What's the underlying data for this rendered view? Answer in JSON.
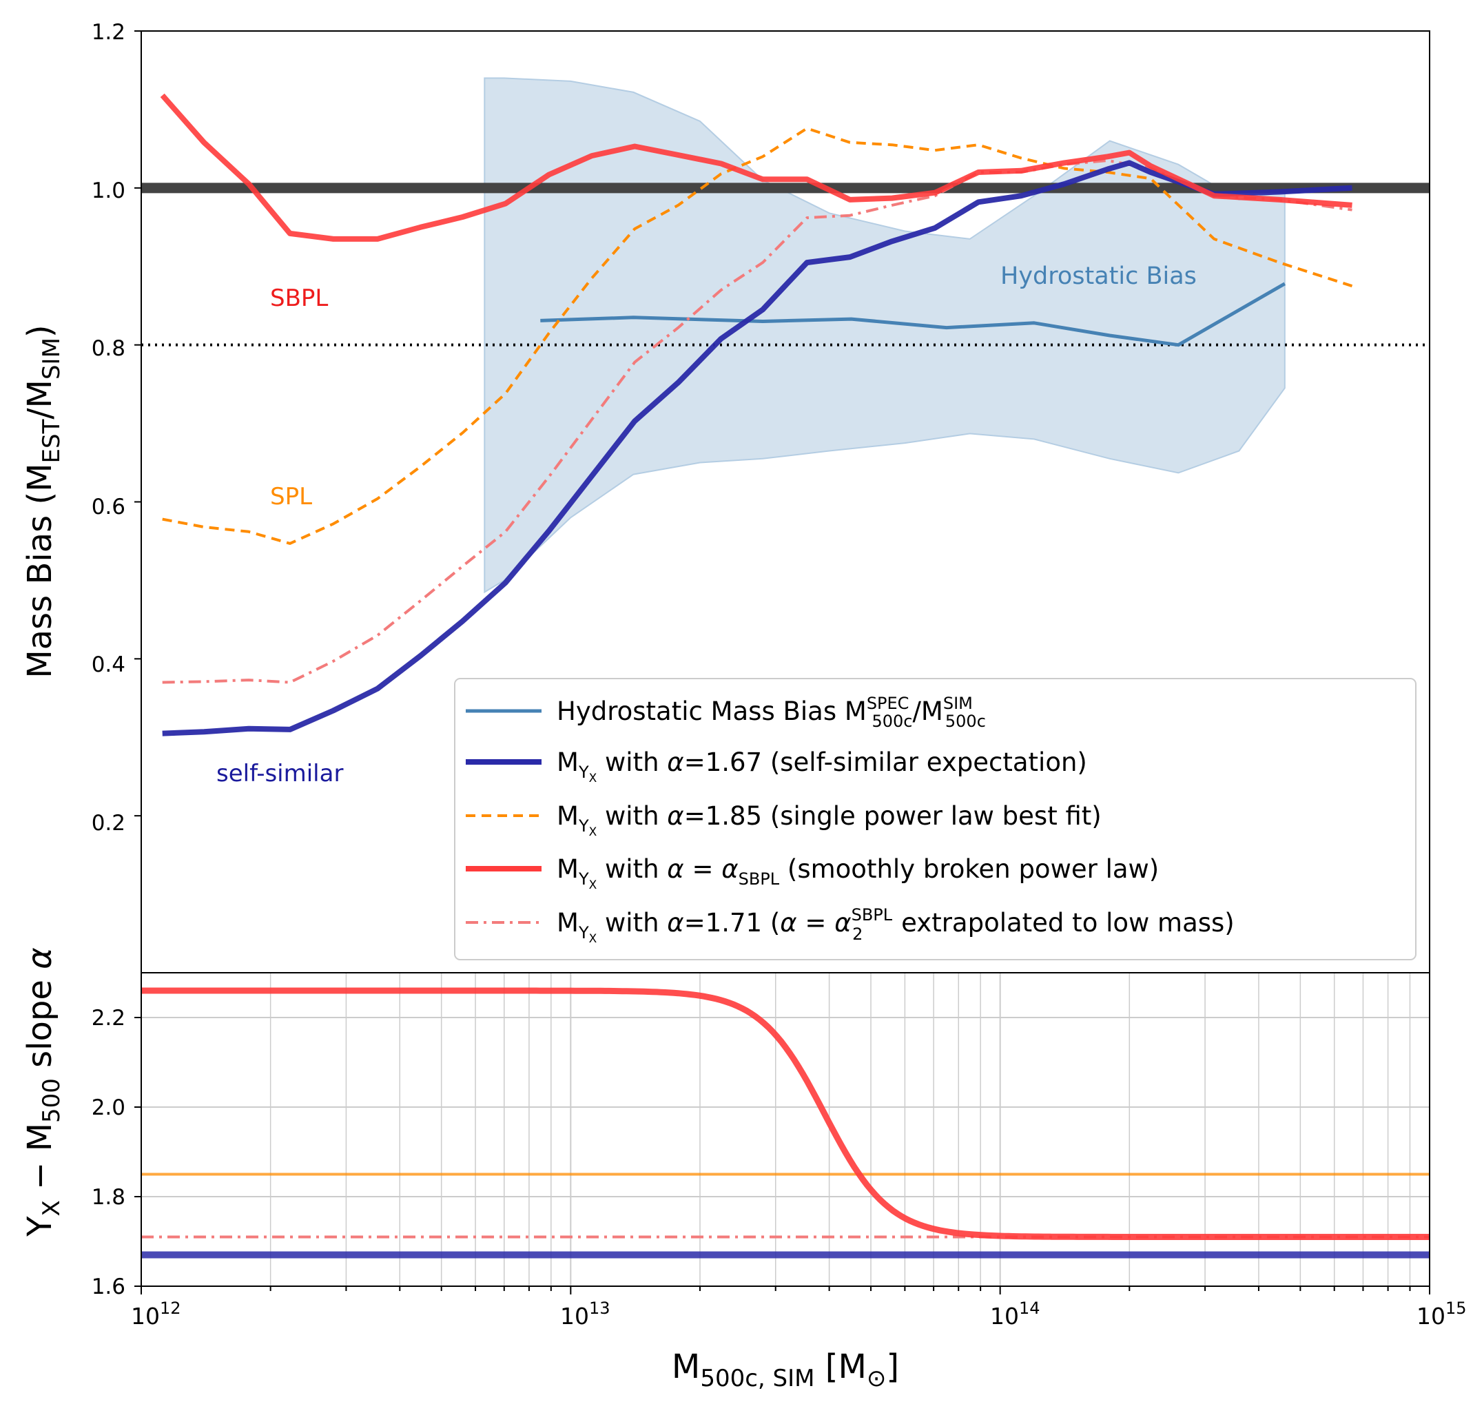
{
  "colors": {
    "self_similar": "#2a2aa8",
    "spl": "#ff8c00",
    "sbpl": "#ff3b3b",
    "sbpl_extrap": "#f37b7b",
    "hydro": "#4682b4",
    "hydro_band": "#c9dbea",
    "ref_line": "#444444",
    "grid": "#cccccc"
  },
  "chart_data": [
    {
      "type": "line",
      "xscale": "log",
      "xlim": [
        1000000000000.0,
        1000000000000000.0
      ],
      "ylim": [
        0,
        1.2
      ],
      "ylabel": "Mass Bias  (M_EST/M_SIM)",
      "yticks": [
        "0.2",
        "0.4",
        "0.6",
        "0.8",
        "1.0",
        "1.2"
      ],
      "reference_lines": [
        {
          "y": 1.0,
          "style": "solid",
          "name": "unity"
        },
        {
          "y": 0.8,
          "style": "dotted",
          "name": "hydrostatic-0.8"
        }
      ],
      "annotations": {
        "sbpl": "SBPL",
        "spl": "SPL",
        "self_similar": "self-similar",
        "hydro": "Hydrostatic Bias"
      },
      "band": {
        "name": "Hydrostatic Bias",
        "x": [
          6300000000000.0,
          7000000000000.0,
          10000000000000.0,
          14000000000000.0,
          20000000000000.0,
          28000000000000.0,
          40000000000000.0,
          60000000000000.0,
          85000000000000.0,
          120000000000000.0,
          180000000000000.0,
          260000000000000.0,
          360000000000000.0,
          460000000000000.0
        ],
        "upper": [
          1.14,
          1.14,
          1.136,
          1.122,
          1.085,
          1.01,
          0.968,
          0.945,
          0.935,
          0.99,
          1.06,
          1.03,
          0.985,
          0.995
        ],
        "lower": [
          0.485,
          0.5,
          0.58,
          0.635,
          0.65,
          0.655,
          0.665,
          0.675,
          0.687,
          0.68,
          0.655,
          0.637,
          0.665,
          0.745
        ]
      },
      "series": [
        {
          "name": "Hydrostatic Mass Bias",
          "style": "solid",
          "width": 5,
          "color_key": "hydro",
          "x": [
            8500000000000.0,
            14000000000000.0,
            28000000000000.0,
            45000000000000.0,
            75000000000000.0,
            120000000000000.0,
            180000000000000.0,
            260000000000000.0,
            460000000000000.0
          ],
          "y": [
            0.831,
            0.835,
            0.83,
            0.833,
            0.822,
            0.828,
            0.812,
            0.8,
            0.878
          ]
        },
        {
          "name": "self-similar alpha 1.67",
          "style": "solid",
          "width": 8,
          "color_key": "self_similar",
          "x": [
            1120000000000.0,
            1400000000000.0,
            1780000000000.0,
            2220000000000.0,
            2800000000000.0,
            3550000000000.0,
            4470000000000.0,
            5600000000000.0,
            7050000000000.0,
            8900000000000.0,
            11200000000000.0,
            14100000000000.0,
            17800000000000.0,
            22400000000000.0,
            28000000000000.0,
            35500000000000.0,
            44700000000000.0,
            56000000000000.0,
            70500000000000.0,
            89000000000000.0,
            112000000000000.0,
            141000000000000.0,
            178000000000000.0,
            200000000000000.0,
            224000000000000.0,
            315000000000000.0,
            447000000000000.0,
            660000000000000.0
          ],
          "y": [
            0.305,
            0.307,
            0.311,
            0.31,
            0.334,
            0.362,
            0.404,
            0.448,
            0.497,
            0.563,
            0.633,
            0.703,
            0.752,
            0.808,
            0.845,
            0.905,
            0.912,
            0.932,
            0.949,
            0.982,
            0.99,
            1.005,
            1.024,
            1.032,
            1.02,
            0.992,
            0.995,
            1.0
          ]
        },
        {
          "name": "SPL alpha 1.85",
          "style": "dashed",
          "width": 4,
          "color_key": "spl",
          "x": [
            1120000000000.0,
            1400000000000.0,
            1780000000000.0,
            2220000000000.0,
            2800000000000.0,
            3550000000000.0,
            4470000000000.0,
            5600000000000.0,
            7050000000000.0,
            8900000000000.0,
            11200000000000.0,
            14100000000000.0,
            17800000000000.0,
            22400000000000.0,
            28000000000000.0,
            35500000000000.0,
            44700000000000.0,
            56000000000000.0,
            70500000000000.0,
            89000000000000.0,
            112000000000000.0,
            141000000000000.0,
            178000000000000.0,
            224000000000000.0,
            315000000000000.0,
            447000000000000.0,
            660000000000000.0
          ],
          "y": [
            0.578,
            0.568,
            0.562,
            0.547,
            0.572,
            0.604,
            0.645,
            0.688,
            0.738,
            0.815,
            0.885,
            0.948,
            0.978,
            1.018,
            1.04,
            1.076,
            1.058,
            1.055,
            1.048,
            1.055,
            1.038,
            1.025,
            1.02,
            1.012,
            0.935,
            0.905,
            0.875
          ]
        },
        {
          "name": "SBPL",
          "style": "solid",
          "width": 8,
          "color_key": "sbpl",
          "x": [
            1120000000000.0,
            1400000000000.0,
            1780000000000.0,
            2220000000000.0,
            2800000000000.0,
            3550000000000.0,
            4470000000000.0,
            5600000000000.0,
            7050000000000.0,
            8900000000000.0,
            11200000000000.0,
            14100000000000.0,
            17800000000000.0,
            22400000000000.0,
            28000000000000.0,
            35500000000000.0,
            44700000000000.0,
            56000000000000.0,
            70500000000000.0,
            89000000000000.0,
            112000000000000.0,
            141000000000000.0,
            178000000000000.0,
            200000000000000.0,
            224000000000000.0,
            315000000000000.0,
            447000000000000.0,
            660000000000000.0
          ],
          "y": [
            1.118,
            1.058,
            1.005,
            0.942,
            0.935,
            0.935,
            0.95,
            0.963,
            0.98,
            1.017,
            1.041,
            1.053,
            1.042,
            1.031,
            1.011,
            1.011,
            0.985,
            0.987,
            0.994,
            1.02,
            1.022,
            1.032,
            1.04,
            1.045,
            1.028,
            0.99,
            0.985,
            0.978
          ]
        },
        {
          "name": "SBPL extrapolated alpha 1.71",
          "style": "dashdot",
          "width": 4,
          "color_key": "sbpl_extrap",
          "x": [
            1120000000000.0,
            1400000000000.0,
            1780000000000.0,
            2220000000000.0,
            2800000000000.0,
            3550000000000.0,
            4470000000000.0,
            5600000000000.0,
            7050000000000.0,
            8900000000000.0,
            11200000000000.0,
            14100000000000.0,
            17800000000000.0,
            22400000000000.0,
            28000000000000.0,
            35500000000000.0,
            44700000000000.0,
            56000000000000.0,
            70500000000000.0,
            89000000000000.0,
            112000000000000.0,
            141000000000000.0,
            178000000000000.0,
            224000000000000.0,
            315000000000000.0,
            447000000000000.0,
            660000000000000.0
          ],
          "y": [
            0.37,
            0.371,
            0.373,
            0.37,
            0.397,
            0.43,
            0.474,
            0.518,
            0.562,
            0.632,
            0.705,
            0.778,
            0.822,
            0.87,
            0.905,
            0.962,
            0.965,
            0.978,
            0.99,
            1.02,
            1.02,
            1.03,
            1.035,
            1.025,
            0.99,
            0.985,
            0.972
          ]
        }
      ],
      "legend": {
        "placement": "lower-right",
        "entries": [
          {
            "prefix": "Hydrostatic Mass Bias M",
            "sup1": "SPEC",
            "sub1": "500c",
            "mid": "/M",
            "sup2": "SIM",
            "sub2": "500c",
            "color_key": "hydro",
            "style": "solid",
            "width": 5
          },
          {
            "prefix": "M",
            "sub1": "Y",
            "subsub": "X",
            "mid": " with ",
            "alpha": "α",
            "rest": "=1.67 (self-similar expectation)",
            "color_key": "self_similar",
            "style": "solid",
            "width": 8
          },
          {
            "prefix": "M",
            "sub1": "Y",
            "subsub": "X",
            "mid": " with ",
            "alpha": "α",
            "rest": "=1.85 (single power law best fit)",
            "color_key": "spl",
            "style": "dashed",
            "width": 4
          },
          {
            "prefix": "M",
            "sub1": "Y",
            "subsub": "X",
            "mid": " with ",
            "alpha": "α",
            "rest1": " = ",
            "alpha2": "α",
            "sub2": "SBPL",
            "rest": " (smoothly broken power law)",
            "color_key": "sbpl",
            "style": "solid",
            "width": 8
          },
          {
            "prefix": "M",
            "sub1": "Y",
            "subsub": "X",
            "mid": " with ",
            "alpha": "α",
            "rest1": "=1.71 (",
            "alpha2": "α",
            "rest2": " = ",
            "alpha3": "α",
            "sub3": "2",
            "sup3": "SBPL",
            "rest": " extrapolated to low mass)",
            "color_key": "sbpl_extrap",
            "style": "dashdot",
            "width": 4
          }
        ]
      }
    },
    {
      "type": "line",
      "xscale": "log",
      "xlim": [
        1000000000000.0,
        1000000000000000.0
      ],
      "ylim": [
        1.6,
        2.3
      ],
      "ylabel": "Y_X − M_500 slope α",
      "xlabel": "M_500c,SIM [M_⊙]",
      "yticks": [
        "1.6",
        "1.8",
        "2.0",
        "2.2"
      ],
      "xticks": [
        {
          "base": "10",
          "exp": "12",
          "value": 1000000000000.0
        },
        {
          "base": "10",
          "exp": "13",
          "value": 10000000000000.0
        },
        {
          "base": "10",
          "exp": "14",
          "value": 100000000000000.0
        },
        {
          "base": "10",
          "exp": "15",
          "value": 1000000000000000.0
        }
      ],
      "grid": true,
      "series": [
        {
          "name": "self-similar slope",
          "y_const": 1.67,
          "color_key": "self_similar",
          "style": "solid",
          "width": 10
        },
        {
          "name": "SPL slope",
          "y_const": 1.85,
          "color_key": "spl",
          "style": "solid",
          "width": 4
        },
        {
          "name": "SBPL extrapolated slope",
          "y_const": 1.71,
          "color_key": "sbpl_extrap",
          "style": "dashdot",
          "width": 4
        },
        {
          "name": "SBPL slope",
          "color_key": "sbpl",
          "style": "solid",
          "width": 9,
          "sbpl": {
            "alpha1": 2.26,
            "alpha2": 1.71,
            "break_mass": 39000000000000.0,
            "smoothness": 0.075
          }
        }
      ]
    }
  ]
}
